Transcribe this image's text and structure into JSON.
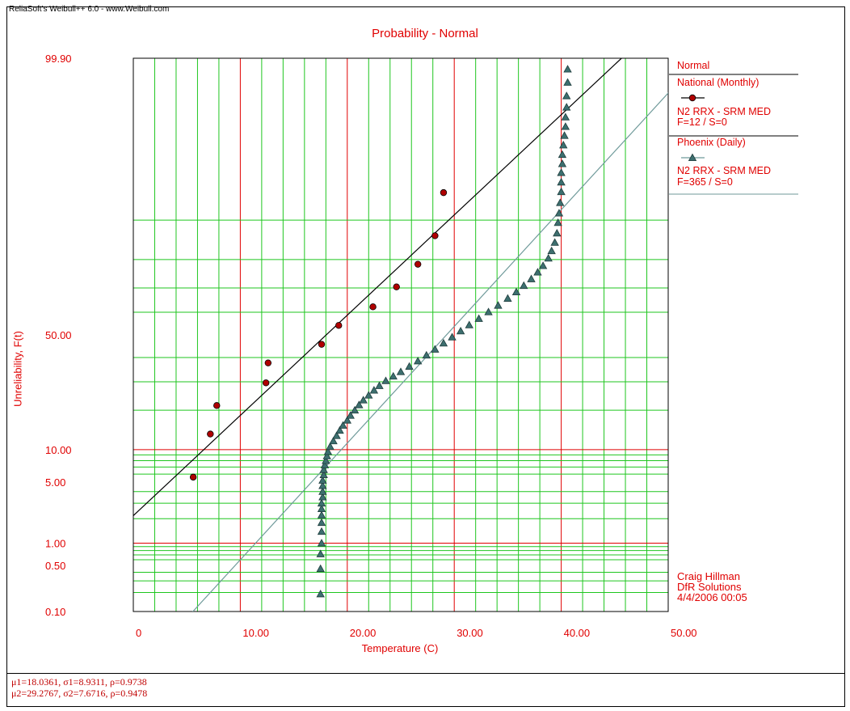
{
  "header": {
    "text": "ReliaSoft's Weibull++ 6.0 - www.Weibull.com"
  },
  "chart_data": {
    "type": "scatter",
    "title": "Probability - Normal",
    "xlabel": "Temperature (C)",
    "ylabel": "Unreliability, F(t)",
    "xlim": [
      0,
      50
    ],
    "ylim_percent": [
      0.1,
      99.9
    ],
    "y_scale": "normal-probability",
    "x_ticks": [
      "0",
      "10.00",
      "20.00",
      "30.00",
      "40.00",
      "50.00"
    ],
    "y_ticks": [
      {
        "p": 99.9,
        "label": "99.90"
      },
      {
        "p": 50,
        "label": "50.00"
      },
      {
        "p": 10,
        "label": "10.00"
      },
      {
        "p": 5,
        "label": "5.00"
      },
      {
        "p": 1,
        "label": "1.00"
      },
      {
        "p": 0.5,
        "label": "0.50"
      },
      {
        "p": 0.1,
        "label": "0.10"
      }
    ],
    "grid": true,
    "legend": {
      "title": "Normal",
      "placement": "right",
      "entries": [
        {
          "name": "National (Monthly)",
          "line1": "N2 RRX - SRM MED",
          "line2": "F=12 / S=0"
        },
        {
          "name": "Phoenix (Daily)",
          "line1": "N2 RRX - SRM MED",
          "line2": "F=365 / S=0"
        }
      ]
    },
    "series": [
      {
        "name": "National (Monthly)",
        "marker": "circle",
        "color": "#b00000",
        "line_color": "#000000",
        "fit": {
          "mu": 18.0361,
          "sigma": 8.9311
        },
        "points": [
          [
            5.6,
            5.6
          ],
          [
            7.2,
            13.4
          ],
          [
            7.8,
            21.5
          ],
          [
            12.4,
            29.6
          ],
          [
            12.6,
            37.7
          ],
          [
            17.6,
            45.8
          ],
          [
            19.2,
            54.2
          ],
          [
            22.4,
            62.3
          ],
          [
            24.6,
            70.4
          ],
          [
            26.6,
            78.5
          ],
          [
            28.2,
            86.6
          ],
          [
            29.0,
            94.4
          ]
        ]
      },
      {
        "name": "Phoenix (Daily)",
        "marker": "triangle",
        "color": "#3d6f6f",
        "line_color": "#6f9a9a",
        "fit": {
          "mu": 29.2767,
          "sigma": 7.6716
        },
        "points": [
          [
            17.5,
            0.19
          ],
          [
            17.5,
            0.45
          ],
          [
            17.5,
            0.72
          ],
          [
            17.6,
            1.0
          ],
          [
            17.6,
            1.4
          ],
          [
            17.6,
            1.8
          ],
          [
            17.6,
            2.2
          ],
          [
            17.6,
            2.6
          ],
          [
            17.6,
            3.0
          ],
          [
            17.7,
            3.5
          ],
          [
            17.7,
            4.0
          ],
          [
            17.7,
            4.6
          ],
          [
            17.7,
            5.2
          ],
          [
            17.8,
            5.9
          ],
          [
            17.8,
            6.6
          ],
          [
            17.9,
            7.3
          ],
          [
            18.0,
            8.0
          ],
          [
            18.1,
            8.8
          ],
          [
            18.2,
            9.6
          ],
          [
            18.4,
            10.6
          ],
          [
            18.7,
            11.8
          ],
          [
            19.0,
            13.0
          ],
          [
            19.3,
            14.3
          ],
          [
            19.6,
            15.6
          ],
          [
            20.0,
            17.0
          ],
          [
            20.3,
            18.4
          ],
          [
            20.7,
            20.0
          ],
          [
            21.1,
            21.7
          ],
          [
            21.5,
            23.3
          ],
          [
            22.0,
            25.0
          ],
          [
            22.5,
            26.8
          ],
          [
            23.0,
            28.5
          ],
          [
            23.6,
            30.4
          ],
          [
            24.3,
            32.2
          ],
          [
            25.0,
            34.0
          ],
          [
            25.8,
            36.2
          ],
          [
            26.6,
            38.5
          ],
          [
            27.4,
            41.0
          ],
          [
            28.2,
            43.6
          ],
          [
            29.0,
            46.3
          ],
          [
            29.8,
            49.0
          ],
          [
            30.6,
            51.7
          ],
          [
            31.4,
            54.4
          ],
          [
            32.3,
            57.2
          ],
          [
            33.2,
            60.1
          ],
          [
            34.1,
            62.9
          ],
          [
            35.0,
            65.8
          ],
          [
            35.8,
            68.4
          ],
          [
            36.5,
            70.9
          ],
          [
            37.2,
            73.4
          ],
          [
            37.8,
            75.8
          ],
          [
            38.3,
            78.0
          ],
          [
            38.8,
            80.4
          ],
          [
            39.1,
            82.6
          ],
          [
            39.4,
            84.9
          ],
          [
            39.6,
            87.2
          ],
          [
            39.7,
            89.5
          ],
          [
            39.8,
            91.3
          ],
          [
            39.9,
            93.0
          ],
          [
            40.0,
            94.5
          ],
          [
            40.0,
            95.6
          ],
          [
            40.0,
            96.5
          ],
          [
            40.1,
            97.2
          ],
          [
            40.1,
            97.8
          ],
          [
            40.2,
            98.3
          ],
          [
            40.3,
            98.7
          ],
          [
            40.4,
            99.0
          ],
          [
            40.4,
            99.25
          ],
          [
            40.5,
            99.45
          ],
          [
            40.5,
            99.62
          ],
          [
            40.6,
            99.76
          ],
          [
            40.6,
            99.85
          ]
        ]
      }
    ]
  },
  "footer": {
    "line1": "μ1=18.0361, σ1=8.9311, ρ=0.9738",
    "line2": "μ2=29.2767, σ2=7.6716, ρ=0.9478"
  },
  "credit": {
    "line1": "Craig Hillman",
    "line2": "DfR Solutions",
    "line3": "4/4/2006 00:05"
  },
  "colors": {
    "text_red": "#e00000",
    "grid_green": "#1fc61f",
    "grid_red": "#e00000"
  }
}
